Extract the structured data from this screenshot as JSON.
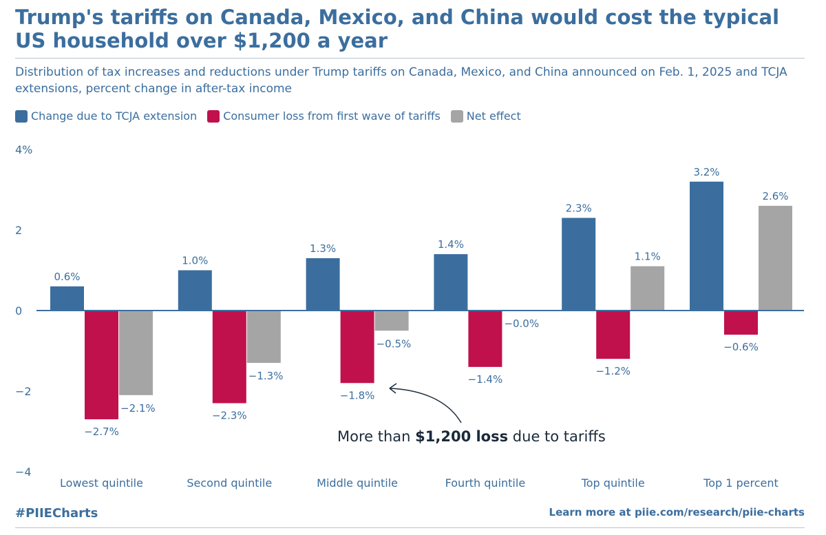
{
  "header": {
    "title": "Trump's tariffs on Canada, Mexico, and China would cost the typical US household over $1,200 a year",
    "subtitle": "Distribution of tax increases and reductions under Trump tariffs on Canada, Mexico, and China announced on Feb. 1, 2025 and TCJA extensions, percent change in after-tax income"
  },
  "footer": {
    "hashtag": "#PIIECharts",
    "link_text": "Learn more at piie.com/research/piie-charts"
  },
  "chart_data": {
    "type": "bar",
    "categories": [
      "Lowest quintile",
      "Second quintile",
      "Middle quintile",
      "Fourth quintile",
      "Top quintile",
      "Top 1 percent"
    ],
    "series": [
      {
        "name": "Change due to TCJA extension",
        "color": "#3b6e9e",
        "values": [
          0.6,
          1.0,
          1.3,
          1.4,
          2.3,
          3.2
        ],
        "labels": [
          "0.6%",
          "1.0%",
          "1.3%",
          "1.4%",
          "2.3%",
          "3.2%"
        ]
      },
      {
        "name": "Consumer loss from first wave of tariffs",
        "color": "#c0114d",
        "values": [
          -2.7,
          -2.3,
          -1.8,
          -1.4,
          -1.2,
          -0.6
        ],
        "labels": [
          "−2.7%",
          "−2.3%",
          "−1.8%",
          "−1.4%",
          "−1.2%",
          "−0.6%"
        ]
      },
      {
        "name": "Net effect",
        "color": "#a5a5a5",
        "values": [
          -2.1,
          -1.3,
          -0.5,
          0.0,
          1.1,
          2.6
        ],
        "labels": [
          "−2.1%",
          "−1.3%",
          "−0.5%",
          "−0.0%",
          "1.1%",
          "2.6%"
        ]
      }
    ],
    "ylim": [
      -4,
      4
    ],
    "yticks": [
      {
        "value": 4,
        "label": "4%"
      },
      {
        "value": 2,
        "label": "2"
      },
      {
        "value": 0,
        "label": "0"
      },
      {
        "value": -2,
        "label": "−2"
      },
      {
        "value": -4,
        "label": "−4"
      }
    ],
    "grid": false,
    "legend_position": "top-left",
    "annotation": {
      "prefix": "More than ",
      "bold": "$1,200 loss",
      "suffix": " due to tariffs",
      "target_category": "Middle quintile",
      "target_series": "Consumer loss from first wave of tariffs"
    }
  }
}
